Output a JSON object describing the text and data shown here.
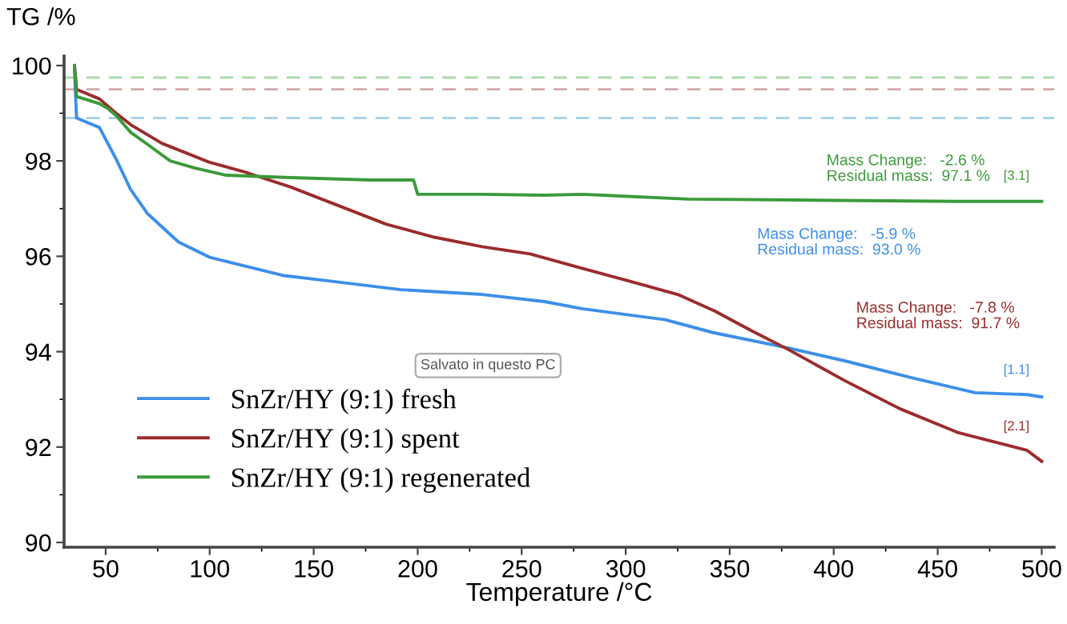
{
  "chart_data": {
    "type": "line",
    "xlabel": "Temperature /°C",
    "ylabel": "TG /%",
    "xlim": [
      30,
      506
    ],
    "ylim": [
      89.9,
      100.2
    ],
    "xticks": [
      50,
      100,
      150,
      200,
      250,
      300,
      350,
      400,
      450,
      500
    ],
    "yticks": [
      90,
      92,
      94,
      96,
      98,
      100
    ],
    "grid": false,
    "legend": "lower left",
    "line_style": "solid",
    "marker": "none",
    "series": [
      {
        "name": "SnZr/HY (9:1) fresh",
        "color": "#3c8fe8",
        "x": [
          35,
          36,
          47,
          55,
          62,
          70,
          85,
          100,
          135,
          154,
          192,
          231,
          261,
          279,
          319,
          342,
          378,
          406,
          437,
          468,
          493,
          500
        ],
        "values": [
          99.9,
          98.9,
          98.7,
          98.04,
          97.4,
          96.9,
          96.3,
          95.98,
          95.6,
          95.5,
          95.3,
          95.2,
          95.05,
          94.9,
          94.67,
          94.4,
          94.08,
          93.8,
          93.46,
          93.14,
          93.1,
          93.05
        ]
      },
      {
        "name": "SnZr/HY (9:1) spent",
        "color": "#9b2c2c",
        "x": [
          35,
          36,
          47,
          55,
          62,
          77,
          100,
          116,
          139,
          162,
          185,
          208,
          231,
          254,
          279,
          300,
          325,
          343,
          360,
          378,
          405,
          432,
          460,
          493,
          500
        ],
        "values": [
          100,
          99.5,
          99.3,
          99.0,
          98.76,
          98.37,
          97.97,
          97.78,
          97.45,
          97.06,
          96.67,
          96.4,
          96.2,
          96.05,
          95.75,
          95.5,
          95.2,
          94.85,
          94.45,
          94.05,
          93.4,
          92.8,
          92.3,
          91.93,
          91.7
        ]
      },
      {
        "name": "SnZr/HY (9:1) regenerated",
        "color": "#3b9a3b",
        "x": [
          35,
          36,
          47,
          51,
          55,
          62,
          70,
          81,
          93,
          108,
          139,
          177,
          198,
          200,
          231,
          261,
          279,
          330,
          383,
          460,
          500
        ],
        "values": [
          100,
          99.35,
          99.2,
          99.1,
          98.95,
          98.6,
          98.35,
          98.0,
          97.85,
          97.7,
          97.65,
          97.6,
          97.6,
          97.3,
          97.3,
          97.28,
          97.3,
          97.2,
          97.18,
          97.15,
          97.15
        ]
      }
    ],
    "ref_lines": [
      {
        "axis": "y",
        "value": 99.75,
        "color": "#a8d8a8",
        "line_style": "dashed"
      },
      {
        "axis": "y",
        "value": 99.5,
        "color": "#d4a8a8",
        "line_style": "dashed"
      },
      {
        "axis": "y",
        "value": 98.9,
        "color": "#a8d4ef",
        "line_style": "dashed"
      }
    ],
    "annotations": [
      "Mass Change:   -2.6 %\nResidual mass:  97.1 %",
      "Mass Change:   -5.9 %\nResidual mass:  93.0 %",
      "Mass Change:   -7.8 %\nResidual mass:  91.7 %",
      "[3.1]",
      "[1.1]",
      "[2.1]",
      "Salvato in questo PC"
    ]
  }
}
